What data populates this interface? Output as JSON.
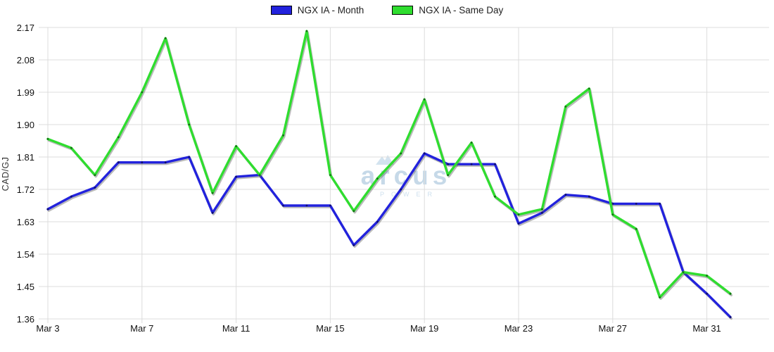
{
  "legend": {
    "items": [
      {
        "label": "NGX IA - Month",
        "color": "#2222dd"
      },
      {
        "label": "NGX IA - Same Day",
        "color": "#2fdd2f"
      }
    ]
  },
  "watermark": {
    "brand": "arcus",
    "sub": "POWER"
  },
  "colors": {
    "gridline": "#dcdcdc",
    "tick_text": "#111111",
    "shadow": "rgba(90,90,90,0.42)"
  },
  "chart_data": {
    "type": "line",
    "title": "",
    "xlabel": "",
    "ylabel": "CAD/GJ",
    "ylim": [
      1.36,
      2.17
    ],
    "y_ticks": [
      1.36,
      1.45,
      1.54,
      1.63,
      1.72,
      1.81,
      1.9,
      1.99,
      2.08,
      2.17
    ],
    "grid": true,
    "legend_position": "top-center",
    "x": [
      "Mar 3",
      "Mar 4",
      "Mar 5",
      "Mar 6",
      "Mar 7",
      "Mar 8",
      "Mar 9",
      "Mar 10",
      "Mar 11",
      "Mar 12",
      "Mar 13",
      "Mar 14",
      "Mar 15",
      "Mar 16",
      "Mar 17",
      "Mar 18",
      "Mar 19",
      "Mar 20",
      "Mar 21",
      "Mar 22",
      "Mar 23",
      "Mar 24",
      "Mar 25",
      "Mar 26",
      "Mar 27",
      "Mar 28",
      "Mar 29",
      "Mar 30",
      "Mar 31",
      "Apr 1"
    ],
    "x_ticks": [
      {
        "index": 0,
        "label": "Mar 3"
      },
      {
        "index": 4,
        "label": "Mar 7"
      },
      {
        "index": 8,
        "label": "Mar 11"
      },
      {
        "index": 12,
        "label": "Mar 15"
      },
      {
        "index": 16,
        "label": "Mar 19"
      },
      {
        "index": 20,
        "label": "Mar 23"
      },
      {
        "index": 24,
        "label": "Mar 27"
      },
      {
        "index": 28,
        "label": "Mar 31"
      }
    ],
    "series": [
      {
        "name": "NGX IA - Month",
        "color": "#2222dd",
        "values": [
          1.665,
          1.7,
          1.725,
          1.795,
          1.795,
          1.795,
          1.81,
          1.655,
          1.755,
          1.76,
          1.675,
          1.675,
          1.675,
          1.565,
          1.63,
          1.72,
          1.82,
          1.79,
          1.79,
          1.79,
          1.625,
          1.655,
          1.705,
          1.7,
          1.68,
          1.68,
          1.68,
          1.49,
          1.43,
          1.365
        ]
      },
      {
        "name": "NGX IA - Same Day",
        "color": "#2fdd2f",
        "values": [
          1.86,
          1.835,
          1.76,
          1.865,
          1.99,
          2.14,
          1.9,
          1.71,
          1.84,
          1.76,
          1.87,
          2.16,
          1.76,
          1.66,
          1.75,
          1.82,
          1.97,
          1.76,
          1.85,
          1.7,
          1.65,
          1.665,
          1.95,
          2.0,
          1.65,
          1.61,
          1.42,
          1.49,
          1.48,
          1.43
        ]
      }
    ]
  }
}
